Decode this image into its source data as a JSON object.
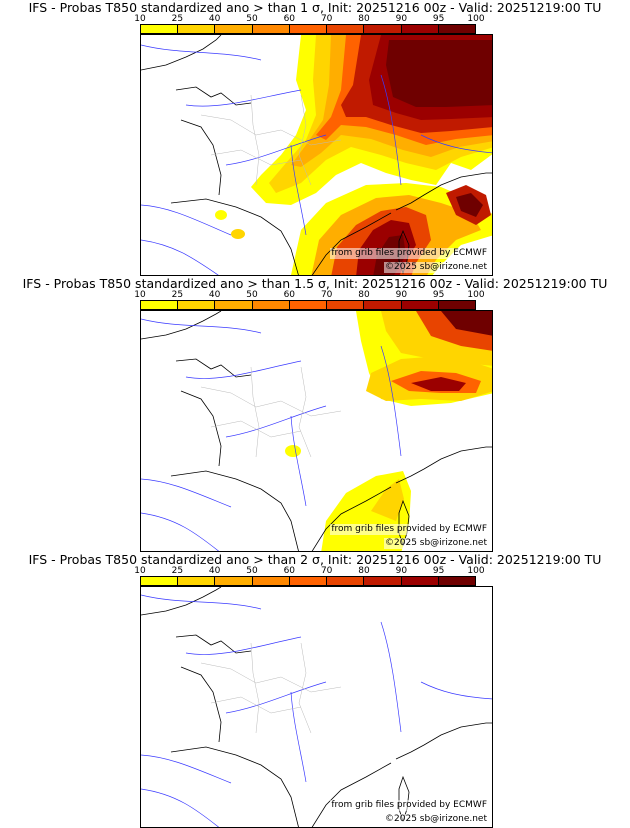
{
  "colorbar": {
    "ticks": [
      "10",
      "25",
      "40",
      "50",
      "60",
      "70",
      "80",
      "90",
      "95",
      "100"
    ],
    "colors": [
      "#ffff00",
      "#ffd500",
      "#ffae00",
      "#ff8800",
      "#ff6200",
      "#e84400",
      "#c01a00",
      "#9b0000",
      "#6f0000"
    ]
  },
  "credits": {
    "source": "from grib files provided by ECMWF",
    "copyright": "©2025 sb@irizone.net"
  },
  "panels": [
    {
      "title": "IFS - Probas T850  standardized ano > than 1 σ, Init: 20251216 00z - Valid: 20251219:00 TU",
      "threshold_sigma": 1
    },
    {
      "title": "IFS - Probas T850  standardized ano > than 1.5 σ, Init: 20251216 00z - Valid: 20251219:00 TU",
      "threshold_sigma": 1.5
    },
    {
      "title": "IFS - Probas T850  standardized ano > than 2 σ, Init: 20251216 00z - Valid: 20251219:00 TU",
      "threshold_sigma": 2
    }
  ]
}
